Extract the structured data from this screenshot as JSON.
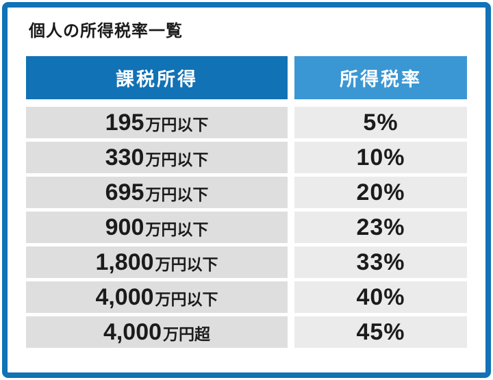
{
  "card": {
    "title": "個人の所得税率一覧"
  },
  "table": {
    "headers": {
      "income": "課税所得",
      "rate": "所得税率"
    },
    "rows": [
      {
        "income_value": "195",
        "income_suffix": "万円以下",
        "rate": "5%"
      },
      {
        "income_value": "330",
        "income_suffix": "万円以下",
        "rate": "10%"
      },
      {
        "income_value": "695",
        "income_suffix": "万円以下",
        "rate": "20%"
      },
      {
        "income_value": "900",
        "income_suffix": "万円以下",
        "rate": "23%"
      },
      {
        "income_value": "1,800",
        "income_suffix": "万円以下",
        "rate": "33%"
      },
      {
        "income_value": "4,000",
        "income_suffix": "万円以下",
        "rate": "40%"
      },
      {
        "income_value": "4,000",
        "income_suffix": "万円超",
        "rate": "45%"
      }
    ]
  },
  "colors": {
    "frame_border": "#1172b5",
    "header_income_bg": "#1172b5",
    "header_rate_bg": "#3b97d3",
    "cell_income_bg": "#dedede",
    "cell_rate_bg": "#ebebeb",
    "header_text": "#ffffff",
    "body_text": "#1b1b1b"
  },
  "chart_data": {
    "type": "table",
    "title": "個人の所得税率一覧",
    "columns": [
      "課税所得",
      "所得税率"
    ],
    "rows": [
      [
        "195万円以下",
        "5%"
      ],
      [
        "330万円以下",
        "10%"
      ],
      [
        "695万円以下",
        "20%"
      ],
      [
        "900万円以下",
        "23%"
      ],
      [
        "1,800万円以下",
        "33%"
      ],
      [
        "4,000万円以下",
        "40%"
      ],
      [
        "4,000万円超",
        "45%"
      ]
    ]
  }
}
